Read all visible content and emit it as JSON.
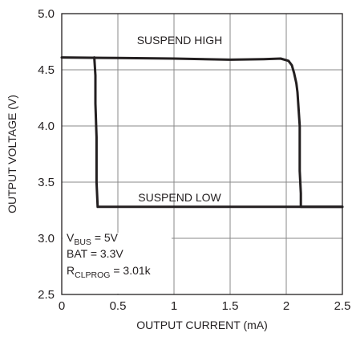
{
  "chart_data": {
    "type": "line",
    "xlabel": "OUTPUT CURRENT (mA)",
    "ylabel": "OUTPUT VOLTAGE (V)",
    "xlim": [
      0,
      2.5
    ],
    "ylim": [
      2.5,
      5.0
    ],
    "x_ticks": [
      "0",
      "0.5",
      "1",
      "1.5",
      "2",
      "2.5"
    ],
    "y_ticks": [
      "2.5",
      "3.0",
      "3.5",
      "4.0",
      "4.5",
      "5.0"
    ],
    "grid": true,
    "annotations": [
      "SUSPEND HIGH",
      "SUSPEND LOW"
    ],
    "conditions": {
      "vbus": {
        "main": "V",
        "sub": "BUS",
        "rest": " = 5V"
      },
      "bat": "BAT = 3.3V",
      "rclprog": {
        "main": "R",
        "sub": "CLPROG",
        "rest": " = 3.01k"
      }
    },
    "series": [
      {
        "x": [
          0,
          0.5,
          1.0,
          1.5,
          1.8,
          1.95,
          2.02,
          2.05,
          2.07,
          2.09,
          2.1,
          2.11,
          2.12,
          2.12,
          2.13,
          2.13,
          2.5
        ],
        "y": [
          4.61,
          4.605,
          4.6,
          4.59,
          4.595,
          4.6,
          4.58,
          4.54,
          4.47,
          4.38,
          4.3,
          4.15,
          4.0,
          3.6,
          3.4,
          3.28,
          3.28
        ]
      },
      {
        "x": [
          0.29,
          0.3,
          0.3,
          0.31,
          0.31,
          0.32,
          1.0,
          2.0,
          2.5
        ],
        "y": [
          4.61,
          4.45,
          4.2,
          3.9,
          3.5,
          3.28,
          3.28,
          3.28,
          3.28
        ]
      }
    ]
  }
}
